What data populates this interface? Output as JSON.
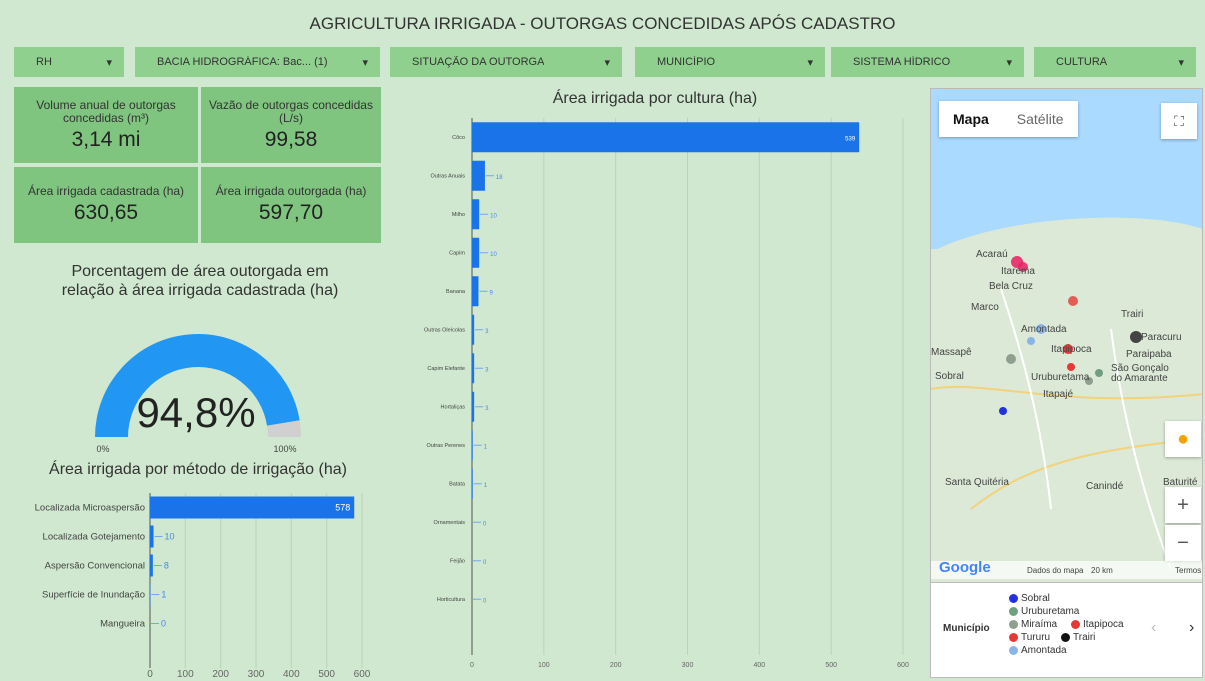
{
  "title": "AGRICULTURA IRRIGADA - OUTORGAS CONCEDIDAS APÓS CADASTRO",
  "filters": [
    "RH",
    "BACIA HIDROGRÁFICA: Bac... (1)",
    "SITUAÇÃO DA OUTORGA",
    "MUNICÍPIO",
    "SISTEMA HÍDRICO",
    "CULTURA"
  ],
  "kpis": [
    {
      "label": "Volume anual de outorgas concedidas (m³)",
      "value": "3,14 mi"
    },
    {
      "label": "Vazão de outorgas concedidas (L/s)",
      "value": "99,58"
    },
    {
      "label": "Área irrigada cadastrada (ha)",
      "value": "630,65"
    },
    {
      "label": "Área irrigada outorgada (ha)",
      "value": "597,70"
    }
  ],
  "gauge": {
    "title": "Porcentagem de área outorgada em relação à área irrigada cadastrada (ha)",
    "value": 94.8,
    "value_label": "94,8%",
    "range": [
      {
        "value": 0,
        "label": "0%"
      },
      {
        "value": 100,
        "label": "100%"
      }
    ],
    "color": "#2196f3",
    "track_color": "#d0d0d0"
  },
  "chart_data": [
    {
      "type": "hbar",
      "title": "Área irrigada por cultura (ha)",
      "categories": [
        "Côco",
        "Outras Anuais",
        "Milho",
        "Capim",
        "Banana",
        "Outras Oleícolas",
        "Capim Elefante",
        "Hortaliças",
        "Outras Perenes",
        "Batata",
        "Ornamentais",
        "Feijão",
        "Horticultura"
      ],
      "values": [
        539,
        18,
        10,
        10,
        9,
        3,
        3,
        3,
        1,
        1,
        0,
        0,
        0
      ],
      "color": "#1a73e8",
      "xlim": [
        0,
        600
      ],
      "xticks": [
        0,
        100,
        200,
        300,
        400,
        500,
        600
      ],
      "grid": true
    },
    {
      "type": "hbar",
      "title": "Área irrigada por método de irrigação (ha)",
      "categories": [
        "Localizada Microaspersão",
        "Localizada Gotejamento",
        "Aspersão Convencional",
        "Superfície de Inundação",
        "Mangueira"
      ],
      "values": [
        578,
        10,
        8,
        1,
        0
      ],
      "color": "#1a73e8",
      "xlim": [
        0,
        600
      ],
      "xticks": [
        0,
        100,
        200,
        300,
        400,
        500,
        600
      ],
      "grid": true
    }
  ],
  "map": {
    "buttons": [
      "Mapa",
      "Satélite"
    ],
    "places": [
      "Acaraú",
      "Itarema",
      "Bela Cruz",
      "Marco",
      "Amontada",
      "Trairi",
      "Paracuru",
      "Itapipoca",
      "Paraipaba",
      "Massapê",
      "Sobral",
      "Uruburetama",
      "São Gonçalo do Amarante",
      "Itapajé",
      "Santa Quitéria",
      "Canindé",
      "Baturité"
    ],
    "footer": [
      "Google",
      "Dados do mapa",
      "20 km",
      "Termos"
    ],
    "legend_title": "Município",
    "legend": [
      {
        "name": "Sobral",
        "color": "#2233dd"
      },
      {
        "name": "Uruburetama",
        "color": "#6f9f7f"
      },
      {
        "name": "Miraíma",
        "color": "#8f9f8f"
      },
      {
        "name": "Itapipoca",
        "color": "#e53935"
      },
      {
        "name": "Tururu",
        "color": "#e53935"
      },
      {
        "name": "Trairi",
        "color": "#111111"
      },
      {
        "name": "Amontada",
        "color": "#8ab4e8"
      }
    ]
  }
}
